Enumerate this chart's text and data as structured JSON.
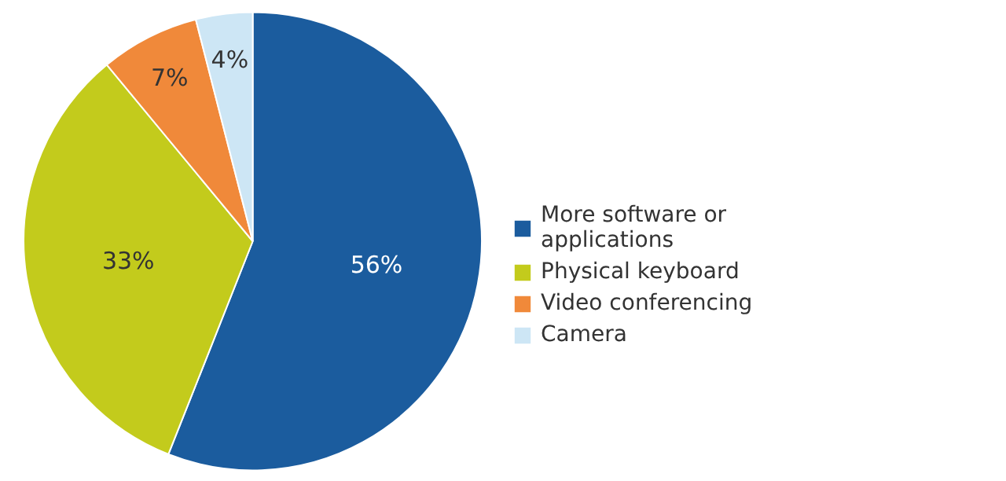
{
  "chart_data": {
    "type": "pie",
    "categories": [
      "More software or applications",
      "Physical keyboard",
      "Video conferencing",
      "Camera"
    ],
    "values": [
      56,
      33,
      7,
      4
    ],
    "colors": [
      "#1b5c9e",
      "#c3cb1c",
      "#f0893a",
      "#cde6f5"
    ],
    "value_labels": [
      "56%",
      "33%",
      "7%",
      "4%"
    ],
    "legend": "right"
  }
}
